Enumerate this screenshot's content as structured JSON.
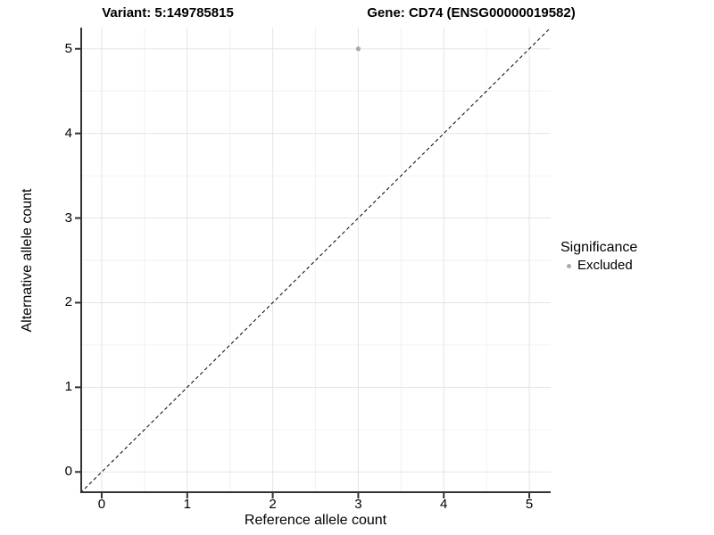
{
  "chart_data": {
    "type": "scatter",
    "titles": {
      "left": "Variant: 5:149785815",
      "right": "Gene: CD74 (ENSG00000019582)"
    },
    "xlabel": "Reference allele count",
    "ylabel": "Alternative allele count",
    "xlim": [
      -0.25,
      5.25
    ],
    "ylim": [
      -0.25,
      5.25
    ],
    "x_ticks": [
      0,
      1,
      2,
      3,
      4,
      5
    ],
    "y_ticks": [
      0,
      1,
      2,
      3,
      4,
      5
    ],
    "grid": {
      "major": true,
      "minor": true
    },
    "points": [
      {
        "x": 3,
        "y": 5,
        "series": "Excluded",
        "color": "#aaaaaa"
      }
    ],
    "identity_line": {
      "style": "dashed",
      "color": "#000000",
      "from": [
        -0.25,
        -0.25
      ],
      "to": [
        5.25,
        5.25
      ]
    },
    "legend": {
      "title": "Significance",
      "position": "right",
      "items": [
        {
          "label": "Excluded",
          "color": "#aaaaaa"
        }
      ]
    },
    "colors": {
      "background": "#ffffff",
      "major_grid": "#e5e5e5",
      "minor_grid": "#f2f2f2",
      "axis": "#333333",
      "text": "#000000"
    }
  }
}
